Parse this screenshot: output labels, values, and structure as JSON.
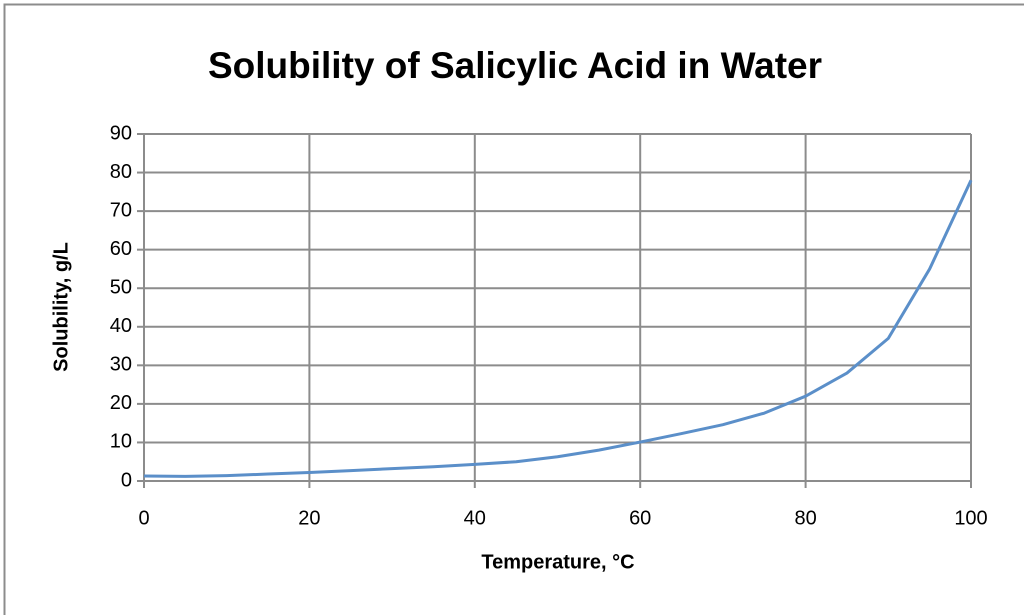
{
  "chart_data": {
    "type": "line",
    "title": "Solubility of Salicylic Acid in Water",
    "x_label": "Temperature, °C",
    "y_label": "Solubility, g/L",
    "x": [
      0,
      5,
      10,
      15,
      20,
      25,
      30,
      35,
      40,
      45,
      50,
      55,
      60,
      65,
      70,
      75,
      80,
      85,
      90,
      95,
      100
    ],
    "series": [
      {
        "name": "Solubility",
        "color": "#5b8fc9",
        "values": [
          1.3,
          1.2,
          1.4,
          1.8,
          2.2,
          2.7,
          3.2,
          3.7,
          4.3,
          5.0,
          6.3,
          8.0,
          10.1,
          12.3,
          14.6,
          17.6,
          22,
          28,
          37,
          55,
          78
        ]
      }
    ],
    "xlim": [
      0,
      100
    ],
    "xticks": [
      0,
      20,
      40,
      60,
      80,
      100
    ],
    "ylim": [
      0,
      90
    ],
    "yticks": [
      0,
      10,
      20,
      30,
      40,
      50,
      60,
      70,
      80,
      90
    ],
    "grid": true
  }
}
